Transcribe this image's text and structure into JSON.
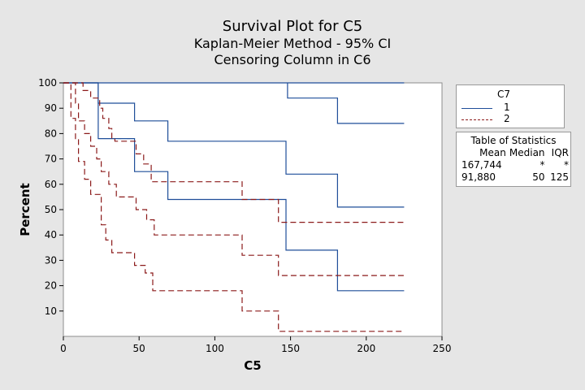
{
  "chart_data": {
    "type": "line",
    "title": "Survival Plot for C5",
    "subtitle": "Kaplan-Meier Method - 95% CI",
    "subtitle2": "Censoring Column in C6",
    "xlabel": "C5",
    "ylabel": "Percent",
    "xlim": [
      0,
      250
    ],
    "ylim": [
      0,
      100
    ],
    "xticks": [
      0,
      50,
      100,
      150,
      200,
      250
    ],
    "yticks": [
      10,
      20,
      30,
      40,
      50,
      60,
      70,
      80,
      90,
      100
    ],
    "grid": false,
    "legend": {
      "title": "C7",
      "placement": "right",
      "entries": [
        {
          "name": "1",
          "color": "#1f4e99",
          "style": "solid"
        },
        {
          "name": "2",
          "color": "#8b1a1a",
          "style": "dashed"
        }
      ]
    },
    "series": [
      {
        "group": "1",
        "curve": "upper-ci",
        "color": "#1f4e99",
        "style": "solid",
        "steps": [
          [
            0,
            100
          ],
          [
            225,
            100
          ]
        ]
      },
      {
        "group": "1",
        "curve": "upper-ci-tail",
        "color": "#1f4e99",
        "style": "solid",
        "steps": [
          [
            148,
            100
          ],
          [
            148,
            94
          ],
          [
            181,
            94
          ],
          [
            181,
            84
          ],
          [
            225,
            84
          ]
        ]
      },
      {
        "group": "1",
        "curve": "estimate",
        "color": "#1f4e99",
        "style": "solid",
        "steps": [
          [
            0,
            100
          ],
          [
            23,
            100
          ],
          [
            23,
            92
          ],
          [
            47,
            92
          ],
          [
            47,
            85
          ],
          [
            69,
            85
          ],
          [
            69,
            77
          ],
          [
            147,
            77
          ],
          [
            147,
            64
          ],
          [
            181,
            64
          ],
          [
            181,
            51
          ],
          [
            225,
            51
          ]
        ]
      },
      {
        "group": "1",
        "curve": "lower-ci",
        "color": "#1f4e99",
        "style": "solid",
        "steps": [
          [
            0,
            100
          ],
          [
            23,
            100
          ],
          [
            23,
            78
          ],
          [
            47,
            78
          ],
          [
            47,
            65
          ],
          [
            69,
            65
          ],
          [
            69,
            54
          ],
          [
            147,
            54
          ],
          [
            147,
            34
          ],
          [
            181,
            34
          ],
          [
            181,
            18
          ],
          [
            225,
            18
          ]
        ]
      },
      {
        "group": "2",
        "curve": "upper-ci",
        "color": "#8b1a1a",
        "style": "dashed",
        "steps": [
          [
            0,
            100
          ],
          [
            13,
            100
          ],
          [
            13,
            97
          ],
          [
            18,
            97
          ],
          [
            18,
            94
          ],
          [
            24,
            94
          ],
          [
            24,
            90
          ],
          [
            26,
            90
          ],
          [
            26,
            86
          ],
          [
            30,
            86
          ],
          [
            30,
            82
          ],
          [
            32,
            82
          ],
          [
            32,
            78
          ],
          [
            34,
            78
          ],
          [
            34,
            77
          ],
          [
            48,
            77
          ],
          [
            48,
            72
          ],
          [
            53,
            72
          ],
          [
            53,
            68
          ],
          [
            58,
            68
          ],
          [
            58,
            61
          ],
          [
            118,
            61
          ],
          [
            118,
            54
          ],
          [
            142,
            54
          ],
          [
            142,
            45
          ],
          [
            225,
            45
          ]
        ]
      },
      {
        "group": "2",
        "curve": "estimate",
        "color": "#8b1a1a",
        "style": "dashed",
        "steps": [
          [
            0,
            100
          ],
          [
            8,
            100
          ],
          [
            8,
            92
          ],
          [
            10,
            92
          ],
          [
            10,
            85
          ],
          [
            14,
            85
          ],
          [
            14,
            80
          ],
          [
            18,
            80
          ],
          [
            18,
            75
          ],
          [
            22,
            75
          ],
          [
            22,
            70
          ],
          [
            25,
            70
          ],
          [
            25,
            65
          ],
          [
            30,
            65
          ],
          [
            30,
            60
          ],
          [
            35,
            60
          ],
          [
            35,
            55
          ],
          [
            48,
            55
          ],
          [
            48,
            50
          ],
          [
            55,
            50
          ],
          [
            55,
            46
          ],
          [
            60,
            46
          ],
          [
            60,
            40
          ],
          [
            118,
            40
          ],
          [
            118,
            32
          ],
          [
            142,
            32
          ],
          [
            142,
            24
          ],
          [
            225,
            24
          ]
        ]
      },
      {
        "group": "2",
        "curve": "lower-ci",
        "color": "#8b1a1a",
        "style": "dashed",
        "steps": [
          [
            0,
            100
          ],
          [
            5,
            100
          ],
          [
            5,
            86
          ],
          [
            8,
            86
          ],
          [
            8,
            78
          ],
          [
            10,
            78
          ],
          [
            10,
            69
          ],
          [
            14,
            69
          ],
          [
            14,
            62
          ],
          [
            18,
            62
          ],
          [
            18,
            56
          ],
          [
            25,
            56
          ],
          [
            25,
            44
          ],
          [
            28,
            44
          ],
          [
            28,
            38
          ],
          [
            32,
            38
          ],
          [
            32,
            33
          ],
          [
            47,
            33
          ],
          [
            47,
            28
          ],
          [
            54,
            28
          ],
          [
            54,
            25
          ],
          [
            59,
            25
          ],
          [
            59,
            18
          ],
          [
            118,
            18
          ],
          [
            118,
            10
          ],
          [
            142,
            10
          ],
          [
            142,
            2
          ],
          [
            225,
            2
          ]
        ]
      }
    ],
    "statistics": {
      "title": "Table of Statistics",
      "headers": [
        "Mean",
        "Median",
        "IQR"
      ],
      "rows": [
        [
          "167,744",
          "*",
          "*"
        ],
        [
          "91,880",
          "50",
          "125"
        ]
      ]
    }
  }
}
